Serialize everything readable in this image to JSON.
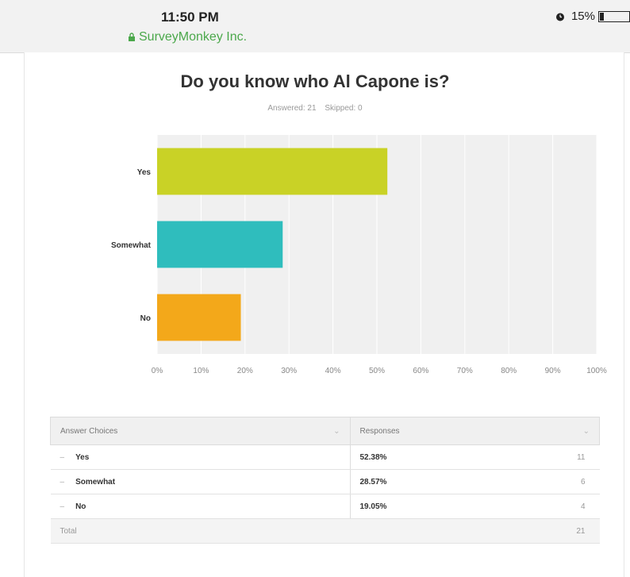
{
  "status_bar": {
    "time": "11:50 PM",
    "site": "SurveyMonkey Inc.",
    "battery": "15%",
    "icons": [
      "lock-icon",
      "alarm-icon",
      "battery-icon"
    ]
  },
  "question": {
    "title": "Do you know who Al Capone is?",
    "answered_label": "Answered: 21",
    "skipped_label": "Skipped: 0"
  },
  "chart_data": {
    "type": "bar",
    "orientation": "horizontal",
    "categories": [
      "Yes",
      "Somewhat",
      "No"
    ],
    "values": [
      52.38,
      28.57,
      19.05
    ],
    "colors": [
      "#c9d226",
      "#2fbdbd",
      "#f3a81a"
    ],
    "xlim": [
      0,
      100
    ],
    "x_ticks": [
      "0%",
      "10%",
      "20%",
      "30%",
      "40%",
      "50%",
      "60%",
      "70%",
      "80%",
      "90%",
      "100%"
    ],
    "grid": true
  },
  "table": {
    "headers": [
      "Answer Choices",
      "Responses"
    ],
    "rows": [
      {
        "choice": "Yes",
        "percent": "52.38%",
        "count": "11"
      },
      {
        "choice": "Somewhat",
        "percent": "28.57%",
        "count": "6"
      },
      {
        "choice": "No",
        "percent": "19.05%",
        "count": "4"
      }
    ],
    "total_label": "Total",
    "total_count": "21"
  }
}
